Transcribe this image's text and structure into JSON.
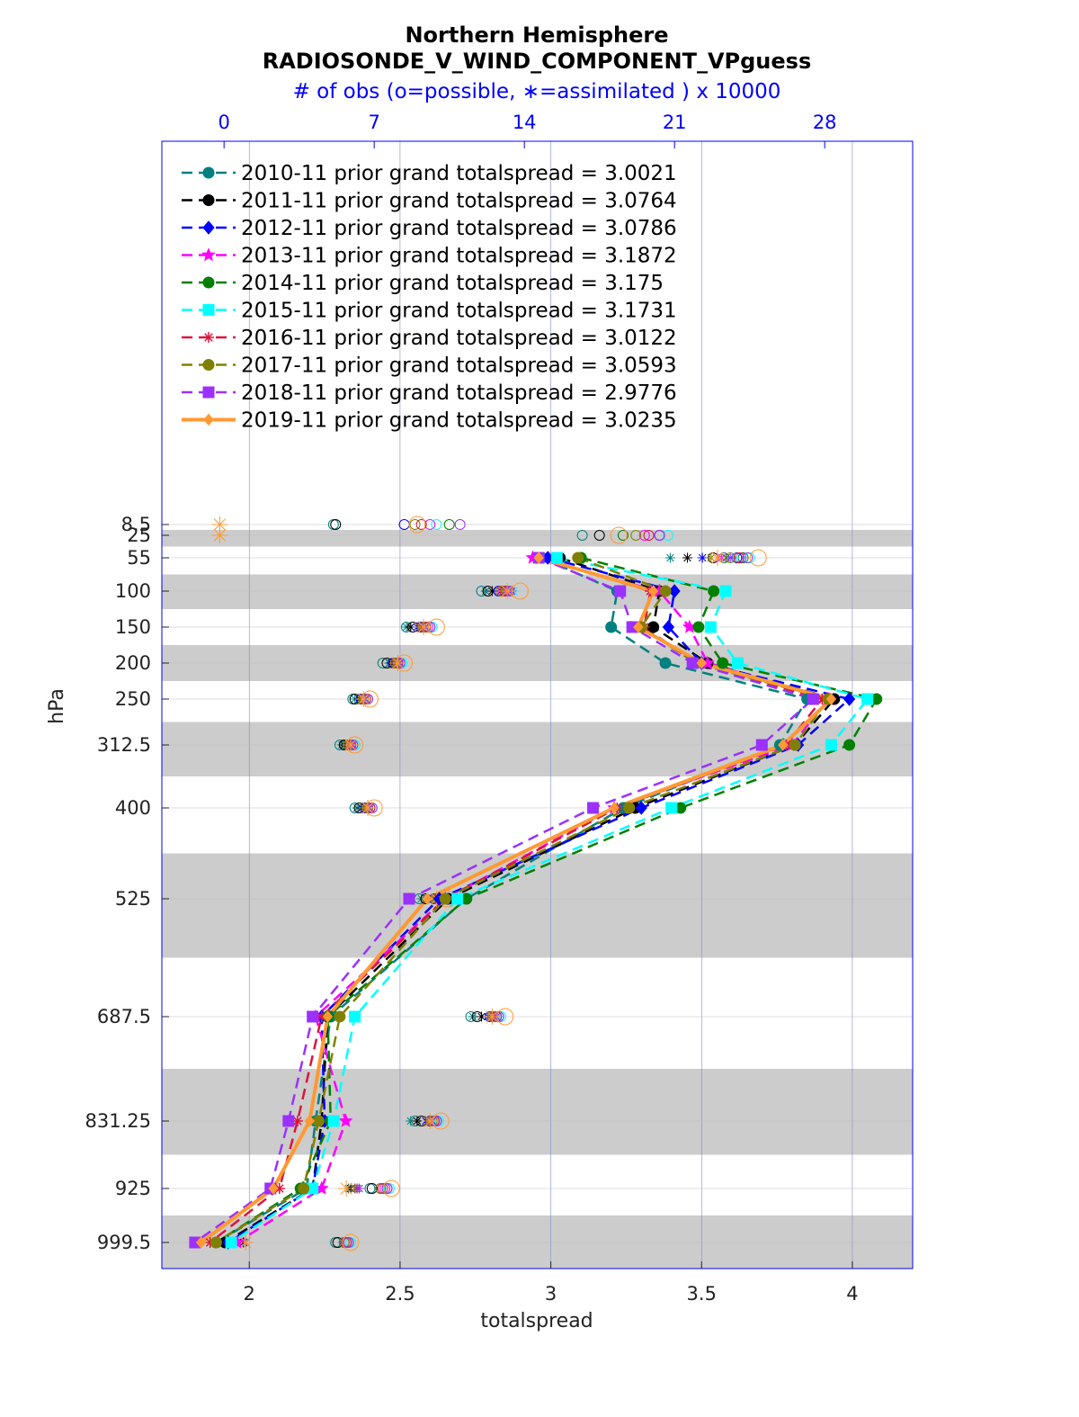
{
  "chart_data": {
    "type": "line",
    "title": "Northern Hemisphere",
    "subtitle": "RADIOSONDE_V_WIND_COMPONENT_VPguess",
    "top_axis_label": "# of obs (o=possible, ∗=assimilated ) x 10000",
    "xlabel": "totalspread",
    "ylabel": "hPa",
    "xlim": [
      1.71,
      4.2
    ],
    "xticks": [
      "2",
      "2.5",
      "3",
      "3.5",
      "4"
    ],
    "top_xlim": [
      -2.9,
      32.1
    ],
    "top_xticks": [
      "0",
      "7",
      "14",
      "21",
      "28"
    ],
    "levels": [
      "8.5",
      "25",
      "55",
      "100",
      "150",
      "200",
      "250",
      "312.5",
      "400",
      "525",
      "687.5",
      "831.25",
      "925",
      "999.5"
    ],
    "level_values": [
      8.5,
      25,
      55,
      100,
      150,
      200,
      250,
      312.5,
      400,
      525,
      687.5,
      831.25,
      925,
      999.5
    ],
    "series": [
      {
        "name": "2010-11 prior grand totalspread = 3.0021",
        "color": "#008080",
        "marker": "circle",
        "dash": true,
        "values": [
          null,
          null,
          2.97,
          3.22,
          3.2,
          3.38,
          3.85,
          3.76,
          3.24,
          2.72,
          2.27,
          2.22,
          2.19,
          1.89
        ],
        "obs_possible": [
          5.1,
          16.7,
          23.3,
          12.0,
          8.5,
          7.4,
          6.0,
          5.4,
          6.1,
          9.1,
          11.5,
          8.9,
          6.8,
          5.2
        ],
        "obs_assimilated": [
          null,
          null,
          20.8,
          12.2,
          8.5,
          7.7,
          6.1,
          5.5,
          6.2,
          9.2,
          11.6,
          8.7,
          5.8,
          0.9
        ]
      },
      {
        "name": "2011-11 prior grand totalspread = 3.0764",
        "color": "#000000",
        "marker": "circle",
        "dash": true,
        "values": [
          null,
          null,
          3.03,
          3.36,
          3.34,
          3.52,
          3.94,
          3.81,
          3.28,
          2.66,
          2.26,
          2.24,
          2.21,
          1.92
        ],
        "obs_possible": [
          5.2,
          17.5,
          22.8,
          12.3,
          8.8,
          7.6,
          6.1,
          5.6,
          6.3,
          9.4,
          11.8,
          9.2,
          6.9,
          5.3
        ],
        "obs_assimilated": [
          null,
          null,
          21.6,
          12.5,
          8.7,
          7.8,
          6.3,
          5.6,
          6.4,
          9.5,
          12.0,
          9.0,
          5.9,
          0.9
        ]
      },
      {
        "name": "2012-11 prior grand totalspread = 3.0786",
        "color": "#0000ff",
        "marker": "diamond",
        "dash": true,
        "values": [
          null,
          null,
          2.99,
          3.41,
          3.39,
          3.5,
          3.99,
          3.82,
          3.3,
          2.63,
          2.24,
          2.25,
          2.21,
          1.93
        ],
        "obs_possible": [
          8.4,
          20.3,
          23.9,
          12.8,
          9.2,
          7.9,
          6.4,
          5.8,
          6.6,
          9.8,
          12.4,
          9.6,
          7.3,
          5.6
        ],
        "obs_assimilated": [
          null,
          null,
          22.3,
          12.9,
          9.0,
          8.0,
          6.4,
          5.8,
          6.6,
          9.8,
          12.3,
          9.4,
          6.1,
          1.0
        ]
      },
      {
        "name": "2013-11 prior grand totalspread = 3.1872",
        "color": "#ff00ff",
        "marker": "star",
        "dash": true,
        "values": [
          null,
          null,
          2.94,
          3.36,
          3.46,
          3.52,
          3.92,
          3.8,
          3.21,
          2.65,
          2.22,
          2.32,
          2.24,
          1.96
        ],
        "obs_possible": [
          9.6,
          19.6,
          24.1,
          13.0,
          9.5,
          8.0,
          6.6,
          5.9,
          6.7,
          10.0,
          12.6,
          9.8,
          7.5,
          5.7
        ],
        "obs_assimilated": [
          null,
          null,
          23.2,
          13.1,
          9.3,
          8.2,
          6.5,
          5.9,
          6.7,
          9.9,
          12.5,
          9.6,
          6.2,
          1.0
        ]
      },
      {
        "name": "2014-11 prior grand totalspread = 3.175",
        "color": "#008000",
        "marker": "hexagon",
        "dash": true,
        "values": [
          null,
          null,
          3.1,
          3.54,
          3.49,
          3.57,
          4.08,
          3.99,
          3.43,
          2.72,
          2.26,
          2.27,
          2.17,
          1.89
        ],
        "obs_possible": [
          10.5,
          18.6,
          24.2,
          13.2,
          9.6,
          8.1,
          6.6,
          6.0,
          6.8,
          10.1,
          12.8,
          9.9,
          7.6,
          5.8
        ],
        "obs_assimilated": [
          null,
          null,
          23.4,
          13.4,
          9.4,
          8.2,
          6.6,
          6.0,
          6.8,
          10.0,
          12.7,
          9.7,
          6.3,
          1.0
        ]
      },
      {
        "name": "2015-11 prior grand totalspread = 3.1731",
        "color": "#00ffff",
        "marker": "square",
        "dash": true,
        "values": [
          null,
          null,
          3.02,
          3.58,
          3.53,
          3.62,
          4.05,
          3.93,
          3.4,
          2.69,
          2.35,
          2.28,
          2.21,
          1.94
        ],
        "obs_possible": [
          9.9,
          20.7,
          24.5,
          13.3,
          9.7,
          8.3,
          6.7,
          6.1,
          6.9,
          10.2,
          12.9,
          10.0,
          7.7,
          5.9
        ],
        "obs_assimilated": [
          null,
          null,
          23.8,
          13.5,
          9.5,
          8.3,
          6.6,
          6.0,
          6.8,
          10.1,
          12.8,
          9.8,
          6.3,
          1.0
        ]
      },
      {
        "name": "2016-11 prior grand totalspread = 3.0122",
        "color": "#dc143c",
        "marker": "asterisk",
        "dash": true,
        "values": [
          null,
          null,
          2.96,
          3.33,
          3.31,
          3.48,
          3.9,
          3.78,
          3.22,
          2.65,
          2.24,
          2.16,
          2.1,
          1.87
        ],
        "obs_possible": [
          9.2,
          19.8,
          24.0,
          13.1,
          9.4,
          8.1,
          6.6,
          5.9,
          6.8,
          10.0,
          12.7,
          9.8,
          7.4,
          5.7
        ],
        "obs_assimilated": [
          null,
          null,
          23.0,
          13.2,
          9.2,
          8.1,
          6.5,
          5.9,
          6.7,
          9.9,
          12.6,
          9.6,
          6.2,
          1.0
        ]
      },
      {
        "name": "2017-11 prior grand totalspread = 3.0593",
        "color": "#808000",
        "marker": "circle",
        "dash": true,
        "values": [
          null,
          null,
          3.09,
          3.38,
          3.3,
          3.48,
          3.92,
          3.81,
          3.26,
          2.65,
          2.3,
          2.23,
          2.18,
          1.89
        ],
        "obs_possible": [
          8.9,
          19.2,
          23.6,
          12.9,
          9.3,
          8.0,
          6.5,
          5.8,
          6.7,
          9.9,
          12.5,
          9.7,
          7.3,
          5.6
        ],
        "obs_assimilated": [
          null,
          null,
          22.7,
          13.0,
          9.1,
          8.0,
          6.4,
          5.8,
          6.6,
          9.8,
          12.4,
          9.5,
          6.1,
          1.0
        ]
      },
      {
        "name": "2018-11 prior grand totalspread = 2.9776",
        "color": "#9b30ff",
        "marker": "square",
        "dash": true,
        "values": [
          null,
          null,
          2.96,
          3.23,
          3.27,
          3.47,
          3.87,
          3.7,
          3.14,
          2.53,
          2.21,
          2.13,
          2.07,
          1.82
        ],
        "obs_possible": [
          11.0,
          20.3,
          24.4,
          13.3,
          9.6,
          8.2,
          6.7,
          6.0,
          6.9,
          10.1,
          12.8,
          9.9,
          7.6,
          5.8
        ],
        "obs_assimilated": [
          null,
          null,
          23.6,
          13.4,
          9.4,
          8.2,
          6.6,
          6.0,
          6.8,
          10.0,
          12.7,
          9.7,
          6.3,
          1.0
        ]
      },
      {
        "name": "2019-11 prior grand totalspread = 3.0235",
        "color": "#ff9933",
        "marker": "diamond",
        "dash": false,
        "values": [
          null,
          null,
          2.96,
          3.34,
          3.29,
          3.5,
          3.93,
          3.77,
          3.21,
          2.59,
          2.26,
          2.2,
          2.08,
          1.84
        ],
        "obs_possible": [
          9.0,
          18.4,
          24.9,
          13.8,
          9.9,
          8.4,
          6.8,
          6.1,
          7.0,
          10.4,
          13.1,
          10.1,
          7.8,
          5.9
        ],
        "obs_assimilated": [
          -0.2,
          -0.2,
          23.0,
          13.2,
          9.3,
          8.1,
          6.5,
          5.9,
          6.7,
          9.9,
          12.5,
          9.6,
          5.7,
          1.0
        ]
      }
    ]
  }
}
